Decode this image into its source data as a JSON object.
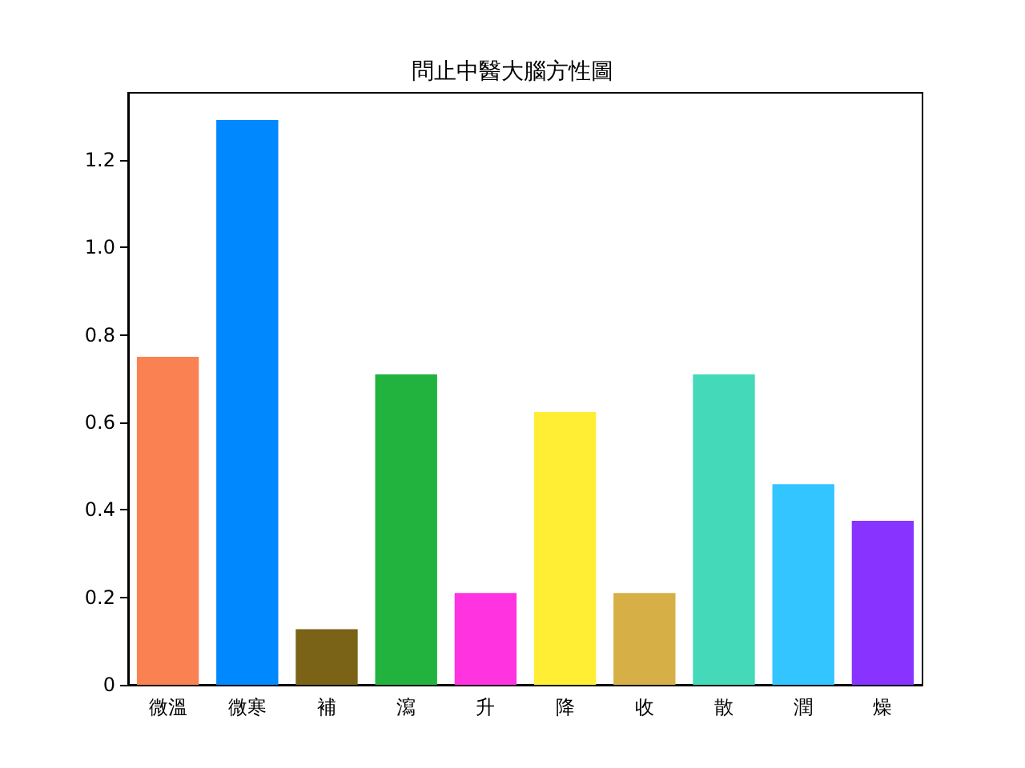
{
  "chart_data": {
    "type": "bar",
    "title": "問止中醫大腦方性圖",
    "categories": [
      "微溫",
      "微寒",
      "補",
      "瀉",
      "升",
      "降",
      "收",
      "散",
      "潤",
      "燥"
    ],
    "values": [
      0.75,
      1.292,
      0.127,
      0.71,
      0.21,
      0.624,
      0.21,
      0.71,
      0.459,
      0.375
    ],
    "colors": [
      "#fa8252",
      "#0088ff",
      "#7a6216",
      "#22b33f",
      "#ff33e0",
      "#ffee33",
      "#d6b046",
      "#44d9b8",
      "#33c5ff",
      "#8833ff"
    ],
    "ylim": [
      0,
      1.354
    ],
    "yticks": [
      0,
      {
        "value": 0.2,
        "label": "0.2"
      },
      {
        "value": 0.4,
        "label": "0.4"
      },
      {
        "value": 0.6,
        "label": "0.6"
      },
      {
        "value": 0.8,
        "label": "0.8"
      },
      {
        "value": 1.0,
        "label": "1.0"
      },
      {
        "value": 1.2,
        "label": "1.2"
      }
    ],
    "grid": false
  }
}
